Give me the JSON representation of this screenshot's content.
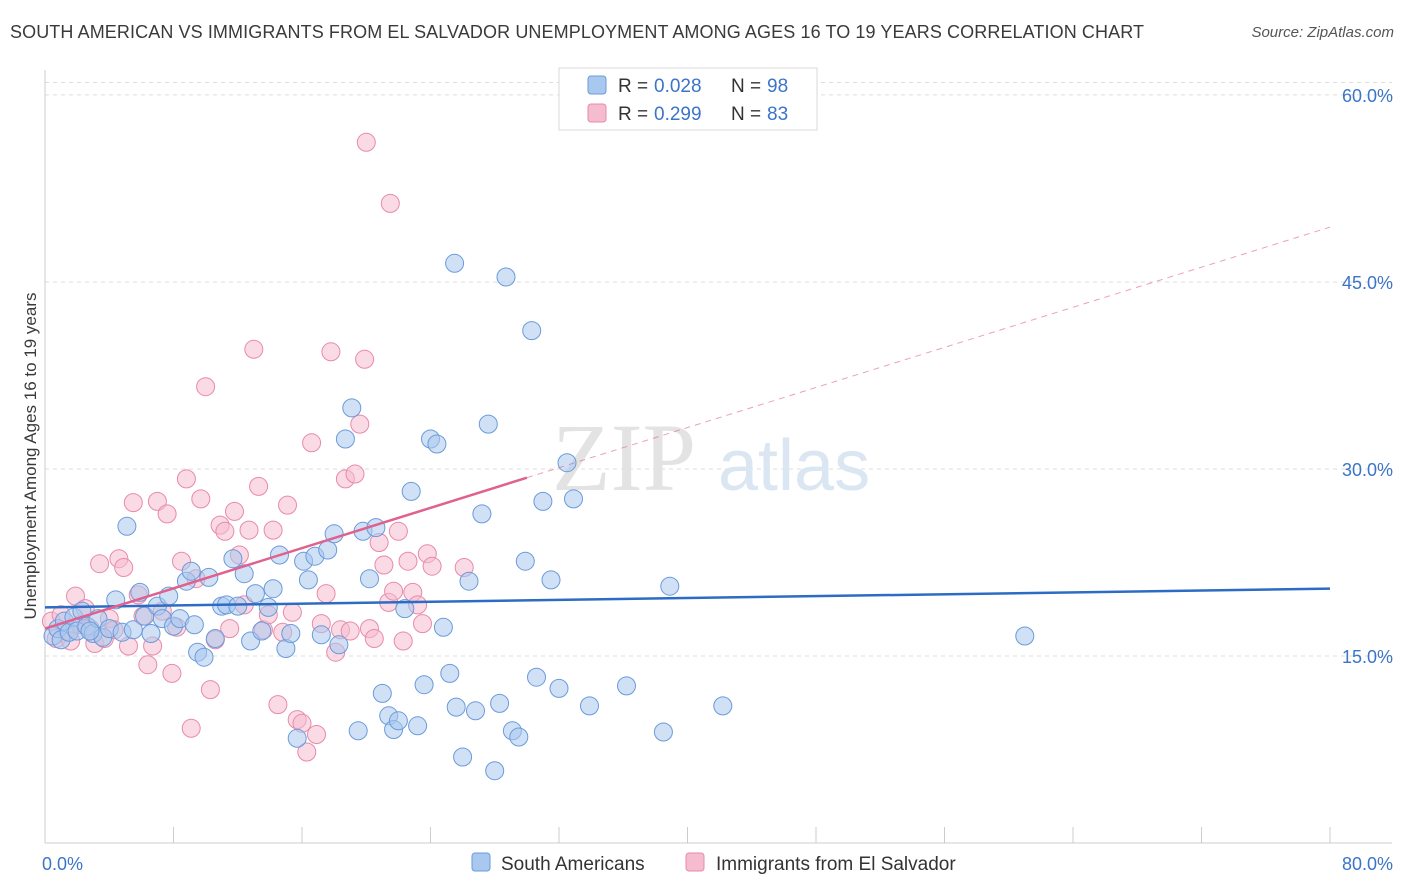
{
  "title": "SOUTH AMERICAN VS IMMIGRANTS FROM EL SALVADOR UNEMPLOYMENT AMONG AGES 16 TO 19 YEARS CORRELATION CHART",
  "source": "Source: ZipAtlas.com",
  "watermark": {
    "zip": "ZIP",
    "atlas": "atlas"
  },
  "colors": {
    "blue_fill": "#a9c8ef",
    "blue_stroke": "#6a9bdb",
    "blue_line": "#2d6cc4",
    "pink_fill": "#f5bcd0",
    "pink_stroke": "#e88aa9",
    "pink_line": "#e0608e",
    "grid": "#dddddd",
    "tick_text": "#3b74c8"
  },
  "legend": {
    "entries": [
      {
        "r_label": "R = ",
        "r_value": "0.028",
        "n_label": "N = ",
        "n_value": "98",
        "series": "blue"
      },
      {
        "r_label": "R = ",
        "r_value": "0.299",
        "n_label": "N = ",
        "n_value": "83",
        "series": "pink"
      }
    ]
  },
  "bottom_legend": [
    "South Americans",
    "Immigrants from El Salvador"
  ],
  "chart_data": {
    "type": "scatter",
    "xlabel": "",
    "ylabel": "Unemployment Among Ages 16 to 19 years",
    "xlim": [
      0,
      80
    ],
    "ylim": [
      0,
      62
    ],
    "x_tick_labels": [
      "0.0%",
      "80.0%"
    ],
    "y_ticks": [
      15,
      30,
      45,
      60
    ],
    "y_tick_labels": [
      "15.0%",
      "30.0%",
      "45.0%",
      "60.0%"
    ],
    "grid": true,
    "series": [
      {
        "name": "South Americans",
        "color": "blue",
        "trend": {
          "x": [
            0,
            80
          ],
          "y": [
            18.9,
            20.4
          ]
        },
        "points": [
          [
            0.5,
            16.6
          ],
          [
            0.8,
            17.2
          ],
          [
            1.0,
            16.3
          ],
          [
            1.2,
            17.8
          ],
          [
            1.5,
            16.9
          ],
          [
            1.8,
            18.1
          ],
          [
            2.0,
            17.0
          ],
          [
            2.3,
            18.6
          ],
          [
            2.6,
            17.4
          ],
          [
            3.0,
            16.8
          ],
          [
            3.3,
            18.0
          ],
          [
            3.6,
            16.5
          ],
          [
            4.0,
            17.2
          ],
          [
            4.4,
            19.5
          ],
          [
            4.8,
            16.9
          ],
          [
            5.1,
            25.4
          ],
          [
            5.5,
            17.1
          ],
          [
            5.9,
            20.1
          ],
          [
            6.2,
            18.2
          ],
          [
            6.6,
            16.8
          ],
          [
            7.0,
            19.0
          ],
          [
            7.3,
            18.0
          ],
          [
            7.7,
            19.8
          ],
          [
            8.0,
            17.4
          ],
          [
            8.4,
            18.0
          ],
          [
            8.8,
            21.0
          ],
          [
            9.1,
            21.8
          ],
          [
            9.5,
            15.3
          ],
          [
            9.9,
            14.9
          ],
          [
            10.2,
            21.3
          ],
          [
            10.6,
            16.4
          ],
          [
            11.0,
            19.0
          ],
          [
            11.3,
            19.1
          ],
          [
            11.7,
            22.8
          ],
          [
            12.0,
            19.0
          ],
          [
            12.4,
            21.6
          ],
          [
            12.8,
            16.2
          ],
          [
            13.1,
            20.0
          ],
          [
            13.5,
            17.0
          ],
          [
            13.9,
            18.9
          ],
          [
            14.2,
            20.4
          ],
          [
            14.6,
            23.1
          ],
          [
            15.0,
            15.6
          ],
          [
            15.3,
            16.8
          ],
          [
            15.7,
            8.4
          ],
          [
            16.1,
            22.6
          ],
          [
            16.4,
            21.1
          ],
          [
            16.8,
            23.0
          ],
          [
            17.2,
            16.7
          ],
          [
            17.6,
            23.5
          ],
          [
            18.0,
            24.8
          ],
          [
            18.3,
            15.9
          ],
          [
            18.7,
            32.4
          ],
          [
            19.1,
            34.9
          ],
          [
            19.5,
            9.0
          ],
          [
            19.8,
            25.0
          ],
          [
            20.2,
            21.2
          ],
          [
            20.6,
            25.3
          ],
          [
            21.0,
            12.0
          ],
          [
            21.4,
            10.2
          ],
          [
            21.7,
            9.1
          ],
          [
            22.0,
            9.8
          ],
          [
            22.4,
            18.8
          ],
          [
            22.8,
            28.2
          ],
          [
            23.2,
            9.4
          ],
          [
            23.6,
            12.7
          ],
          [
            24.0,
            32.4
          ],
          [
            24.4,
            32.0
          ],
          [
            24.8,
            17.3
          ],
          [
            25.2,
            13.6
          ],
          [
            25.6,
            10.9
          ],
          [
            26.0,
            6.9
          ],
          [
            26.4,
            21.0
          ],
          [
            26.8,
            10.6
          ],
          [
            27.2,
            26.4
          ],
          [
            27.6,
            33.6
          ],
          [
            28.0,
            5.8
          ],
          [
            28.3,
            11.2
          ],
          [
            28.7,
            45.4
          ],
          [
            29.1,
            9.0
          ],
          [
            29.5,
            8.5
          ],
          [
            29.9,
            22.6
          ],
          [
            30.3,
            41.1
          ],
          [
            30.6,
            13.3
          ],
          [
            31.0,
            27.4
          ],
          [
            31.5,
            21.1
          ],
          [
            32.0,
            12.4
          ],
          [
            32.5,
            30.5
          ],
          [
            32.9,
            27.6
          ],
          [
            33.9,
            11.0
          ],
          [
            25.5,
            46.5
          ],
          [
            36.2,
            12.6
          ],
          [
            38.5,
            8.9
          ],
          [
            38.9,
            20.6
          ],
          [
            42.2,
            11.0
          ],
          [
            61.0,
            16.6
          ],
          [
            2.8,
            17.0
          ],
          [
            9.3,
            17.5
          ]
        ]
      },
      {
        "name": "Immigrants from El Salvador",
        "color": "pink",
        "trend": {
          "x": [
            0,
            30
          ],
          "y": [
            17.2,
            29.3
          ]
        },
        "dashed_extension": {
          "x": [
            30,
            80
          ],
          "y": [
            29.3,
            49.4
          ]
        },
        "points": [
          [
            0.4,
            17.8
          ],
          [
            0.7,
            16.4
          ],
          [
            1.0,
            18.3
          ],
          [
            1.3,
            17.0
          ],
          [
            1.6,
            16.2
          ],
          [
            1.9,
            19.8
          ],
          [
            2.2,
            17.5
          ],
          [
            2.5,
            18.8
          ],
          [
            2.8,
            17.2
          ],
          [
            3.1,
            16.0
          ],
          [
            3.4,
            22.4
          ],
          [
            3.7,
            16.4
          ],
          [
            4.0,
            18.0
          ],
          [
            4.3,
            17.1
          ],
          [
            4.6,
            22.8
          ],
          [
            4.9,
            22.1
          ],
          [
            5.2,
            15.8
          ],
          [
            5.5,
            27.3
          ],
          [
            5.8,
            19.9
          ],
          [
            6.1,
            18.2
          ],
          [
            6.4,
            14.3
          ],
          [
            6.7,
            15.8
          ],
          [
            7.0,
            27.4
          ],
          [
            7.3,
            18.6
          ],
          [
            7.6,
            26.4
          ],
          [
            7.9,
            13.6
          ],
          [
            8.2,
            17.3
          ],
          [
            8.5,
            22.6
          ],
          [
            8.8,
            29.2
          ],
          [
            9.1,
            9.2
          ],
          [
            9.4,
            21.2
          ],
          [
            9.7,
            27.6
          ],
          [
            10.0,
            36.6
          ],
          [
            10.3,
            12.3
          ],
          [
            10.6,
            16.3
          ],
          [
            10.9,
            25.5
          ],
          [
            11.2,
            25.0
          ],
          [
            11.5,
            17.2
          ],
          [
            11.8,
            26.6
          ],
          [
            12.1,
            23.1
          ],
          [
            12.4,
            19.1
          ],
          [
            12.7,
            25.1
          ],
          [
            13.0,
            39.6
          ],
          [
            13.3,
            28.6
          ],
          [
            13.6,
            17.1
          ],
          [
            13.9,
            18.3
          ],
          [
            14.2,
            25.1
          ],
          [
            14.5,
            11.1
          ],
          [
            14.8,
            16.9
          ],
          [
            15.1,
            27.1
          ],
          [
            15.4,
            18.5
          ],
          [
            15.7,
            9.9
          ],
          [
            16.0,
            9.6
          ],
          [
            16.3,
            7.3
          ],
          [
            16.6,
            32.1
          ],
          [
            16.9,
            8.7
          ],
          [
            17.2,
            17.6
          ],
          [
            17.5,
            20.0
          ],
          [
            17.8,
            39.4
          ],
          [
            18.1,
            15.3
          ],
          [
            18.4,
            17.1
          ],
          [
            18.7,
            29.2
          ],
          [
            19.0,
            17.0
          ],
          [
            19.3,
            29.6
          ],
          [
            19.6,
            33.6
          ],
          [
            19.9,
            38.8
          ],
          [
            20.2,
            17.2
          ],
          [
            20.5,
            16.4
          ],
          [
            20.8,
            24.1
          ],
          [
            21.1,
            22.3
          ],
          [
            21.4,
            19.3
          ],
          [
            21.7,
            20.2
          ],
          [
            22.0,
            25.0
          ],
          [
            22.3,
            16.2
          ],
          [
            22.6,
            22.6
          ],
          [
            22.9,
            20.1
          ],
          [
            23.2,
            19.1
          ],
          [
            23.5,
            17.6
          ],
          [
            23.8,
            23.2
          ],
          [
            24.1,
            22.2
          ],
          [
            20.0,
            56.2
          ],
          [
            21.5,
            51.3
          ],
          [
            26.1,
            22.1
          ]
        ]
      }
    ]
  }
}
